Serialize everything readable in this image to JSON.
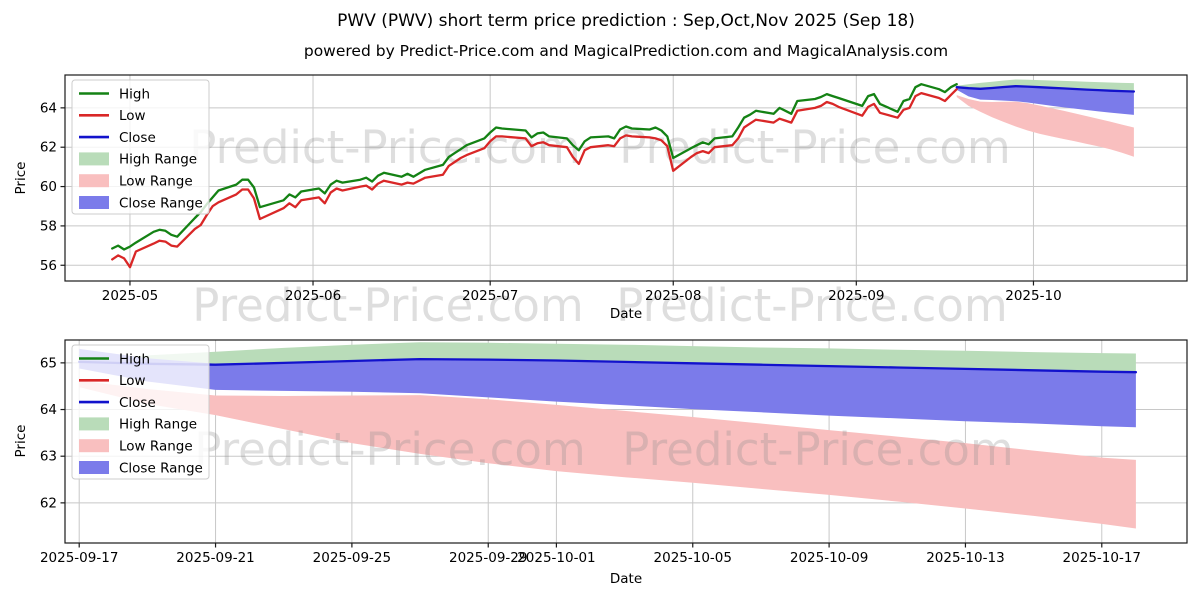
{
  "header": {
    "title": "PWV (PWV) short term price prediction : Sep,Oct,Nov 2025 (Sep 18)",
    "subtitle": "powered by Predict-Price.com and MagicalPrediction.com and MagicalAnalysis.com"
  },
  "watermark": {
    "text": "Predict-Price.com",
    "color": "#8a8a8a",
    "opacity": 0.28
  },
  "colors": {
    "high_line": "#148214",
    "low_line": "#d92727",
    "close_line": "#1212cc",
    "high_range": "#b9dcb9",
    "low_range": "#f9bfbf",
    "close_range": "#7b7bea",
    "grid": "#c8c8c8",
    "spine": "#1a1a1a",
    "tick_text": "#000000",
    "legend_border": "#cccccc"
  },
  "chart_data": [
    {
      "name": "price-history-with-forecast",
      "type": "line",
      "xlabel": "Date",
      "ylabel": "Price",
      "x_range": [
        "2025-04-20",
        "2025-10-27"
      ],
      "y_range": [
        55.2,
        65.67
      ],
      "x_ticks": [
        {
          "v": "2025-05-01",
          "label": "2025-05"
        },
        {
          "v": "2025-06-01",
          "label": "2025-06"
        },
        {
          "v": "2025-07-01",
          "label": "2025-07"
        },
        {
          "v": "2025-08-01",
          "label": "2025-08"
        },
        {
          "v": "2025-09-01",
          "label": "2025-09"
        },
        {
          "v": "2025-10-01",
          "label": "2025-10"
        }
      ],
      "y_ticks": [
        56,
        58,
        60,
        62,
        64
      ],
      "legend": [
        {
          "label": "High",
          "type": "line",
          "color": "#148214"
        },
        {
          "label": "Low",
          "type": "line",
          "color": "#d92727"
        },
        {
          "label": "Close",
          "type": "line",
          "color": "#1212cc"
        },
        {
          "label": "High Range",
          "type": "patch",
          "color": "#b9dcb9"
        },
        {
          "label": "Low Range",
          "type": "patch",
          "color": "#f9bfbf"
        },
        {
          "label": "Close Range",
          "type": "patch",
          "color": "#7b7bea"
        }
      ],
      "series": {
        "history": [
          [
            "2025-04-28",
            56.85,
            56.3
          ],
          [
            "2025-04-29",
            57.0,
            56.5
          ],
          [
            "2025-04-30",
            56.8,
            56.35
          ],
          [
            "2025-05-01",
            56.95,
            55.9
          ],
          [
            "2025-05-02",
            57.15,
            56.7
          ],
          [
            "2025-05-05",
            57.7,
            57.1
          ],
          [
            "2025-05-06",
            57.8,
            57.25
          ],
          [
            "2025-05-07",
            57.75,
            57.2
          ],
          [
            "2025-05-08",
            57.55,
            57.0
          ],
          [
            "2025-05-09",
            57.45,
            56.95
          ],
          [
            "2025-05-12",
            58.4,
            57.85
          ],
          [
            "2025-05-13",
            58.7,
            58.05
          ],
          [
            "2025-05-14",
            59.1,
            58.55
          ],
          [
            "2025-05-15",
            59.45,
            59.0
          ],
          [
            "2025-05-16",
            59.8,
            59.2
          ],
          [
            "2025-05-19",
            60.1,
            59.6
          ],
          [
            "2025-05-20",
            60.35,
            59.85
          ],
          [
            "2025-05-21",
            60.35,
            59.85
          ],
          [
            "2025-05-22",
            59.95,
            59.4
          ],
          [
            "2025-05-23",
            58.95,
            58.35
          ],
          [
            "2025-05-27",
            59.3,
            58.9
          ],
          [
            "2025-05-28",
            59.6,
            59.15
          ],
          [
            "2025-05-29",
            59.45,
            58.95
          ],
          [
            "2025-05-30",
            59.75,
            59.3
          ],
          [
            "2025-06-02",
            59.9,
            59.45
          ],
          [
            "2025-06-03",
            59.65,
            59.15
          ],
          [
            "2025-06-04",
            60.1,
            59.7
          ],
          [
            "2025-06-05",
            60.3,
            59.9
          ],
          [
            "2025-06-06",
            60.2,
            59.8
          ],
          [
            "2025-06-09",
            60.35,
            60.0
          ],
          [
            "2025-06-10",
            60.45,
            60.05
          ],
          [
            "2025-06-11",
            60.25,
            59.85
          ],
          [
            "2025-06-12",
            60.55,
            60.15
          ],
          [
            "2025-06-13",
            60.7,
            60.3
          ],
          [
            "2025-06-16",
            60.5,
            60.1
          ],
          [
            "2025-06-17",
            60.65,
            60.2
          ],
          [
            "2025-06-18",
            60.5,
            60.15
          ],
          [
            "2025-06-20",
            60.85,
            60.45
          ],
          [
            "2025-06-23",
            61.1,
            60.6
          ],
          [
            "2025-06-24",
            61.5,
            61.05
          ],
          [
            "2025-06-25",
            61.7,
            61.25
          ],
          [
            "2025-06-26",
            61.9,
            61.45
          ],
          [
            "2025-06-27",
            62.1,
            61.6
          ],
          [
            "2025-06-30",
            62.45,
            61.95
          ],
          [
            "2025-07-01",
            62.75,
            62.3
          ],
          [
            "2025-07-02",
            63.0,
            62.55
          ],
          [
            "2025-07-03",
            62.95,
            62.55
          ],
          [
            "2025-07-07",
            62.85,
            62.45
          ],
          [
            "2025-07-08",
            62.5,
            62.05
          ],
          [
            "2025-07-09",
            62.7,
            62.2
          ],
          [
            "2025-07-10",
            62.75,
            62.25
          ],
          [
            "2025-07-11",
            62.55,
            62.1
          ],
          [
            "2025-07-14",
            62.45,
            62.0
          ],
          [
            "2025-07-15",
            62.1,
            61.5
          ],
          [
            "2025-07-16",
            61.85,
            61.15
          ],
          [
            "2025-07-17",
            62.3,
            61.85
          ],
          [
            "2025-07-18",
            62.5,
            62.0
          ],
          [
            "2025-07-21",
            62.55,
            62.1
          ],
          [
            "2025-07-22",
            62.45,
            62.05
          ],
          [
            "2025-07-23",
            62.9,
            62.45
          ],
          [
            "2025-07-24",
            63.05,
            62.6
          ],
          [
            "2025-07-25",
            62.95,
            62.55
          ],
          [
            "2025-07-28",
            62.9,
            62.5
          ],
          [
            "2025-07-29",
            63.0,
            62.45
          ],
          [
            "2025-07-30",
            62.85,
            62.35
          ],
          [
            "2025-07-31",
            62.55,
            62.05
          ],
          [
            "2025-08-01",
            61.45,
            60.8
          ],
          [
            "2025-08-04",
            61.95,
            61.5
          ],
          [
            "2025-08-05",
            62.1,
            61.7
          ],
          [
            "2025-08-06",
            62.25,
            61.8
          ],
          [
            "2025-08-07",
            62.15,
            61.7
          ],
          [
            "2025-08-08",
            62.45,
            62.0
          ],
          [
            "2025-08-11",
            62.55,
            62.1
          ],
          [
            "2025-08-12",
            63.0,
            62.45
          ],
          [
            "2025-08-13",
            63.5,
            63.0
          ],
          [
            "2025-08-14",
            63.65,
            63.2
          ],
          [
            "2025-08-15",
            63.85,
            63.4
          ],
          [
            "2025-08-18",
            63.7,
            63.25
          ],
          [
            "2025-08-19",
            64.0,
            63.45
          ],
          [
            "2025-08-20",
            63.85,
            63.35
          ],
          [
            "2025-08-21",
            63.7,
            63.25
          ],
          [
            "2025-08-22",
            64.35,
            63.85
          ],
          [
            "2025-08-25",
            64.45,
            64.0
          ],
          [
            "2025-08-26",
            64.55,
            64.1
          ],
          [
            "2025-08-27",
            64.7,
            64.3
          ],
          [
            "2025-08-28",
            64.6,
            64.2
          ],
          [
            "2025-08-29",
            64.5,
            64.05
          ],
          [
            "2025-09-02",
            64.1,
            63.6
          ],
          [
            "2025-09-03",
            64.6,
            64.05
          ],
          [
            "2025-09-04",
            64.7,
            64.2
          ],
          [
            "2025-09-05",
            64.2,
            63.75
          ],
          [
            "2025-09-08",
            63.8,
            63.5
          ],
          [
            "2025-09-09",
            64.35,
            63.9
          ],
          [
            "2025-09-10",
            64.45,
            64.0
          ],
          [
            "2025-09-11",
            65.05,
            64.6
          ],
          [
            "2025-09-12",
            65.2,
            64.75
          ],
          [
            "2025-09-15",
            64.95,
            64.5
          ],
          [
            "2025-09-16",
            64.8,
            64.35
          ],
          [
            "2025-09-17",
            65.05,
            64.65
          ],
          [
            "2025-09-18",
            65.2,
            64.95
          ]
        ],
        "forecast": {
          "dates": [
            "2025-09-18",
            "2025-09-20",
            "2025-09-22",
            "2025-09-24",
            "2025-09-26",
            "2025-09-28",
            "2025-09-30",
            "2025-10-02",
            "2025-10-04",
            "2025-10-06",
            "2025-10-08",
            "2025-10-10",
            "2025-10-12",
            "2025-10-14",
            "2025-10-16",
            "2025-10-18"
          ],
          "close": [
            65.05,
            65.0,
            64.97,
            65.01,
            65.06,
            65.1,
            65.08,
            65.05,
            65.02,
            64.99,
            64.96,
            64.93,
            64.9,
            64.87,
            64.85,
            64.83
          ],
          "high_range_top": [
            65.12,
            65.2,
            65.27,
            65.33,
            65.39,
            65.44,
            65.43,
            65.41,
            65.39,
            65.37,
            65.35,
            65.33,
            65.31,
            65.29,
            65.27,
            65.26
          ],
          "close_range_top": [
            65.05,
            65.0,
            64.97,
            65.01,
            65.06,
            65.1,
            65.08,
            65.05,
            65.02,
            64.99,
            64.96,
            64.93,
            64.9,
            64.87,
            64.85,
            64.83
          ],
          "close_range_bottom": [
            64.92,
            64.58,
            64.42,
            64.4,
            64.37,
            64.34,
            64.27,
            64.19,
            64.11,
            64.03,
            63.96,
            63.89,
            63.82,
            63.76,
            63.7,
            63.64
          ],
          "low_range_top": [
            64.65,
            64.45,
            64.32,
            64.3,
            64.31,
            64.32,
            64.24,
            64.12,
            63.99,
            63.86,
            63.72,
            63.58,
            63.44,
            63.3,
            63.15,
            63.0
          ],
          "low_range_bottom": [
            64.55,
            64.1,
            63.8,
            63.52,
            63.28,
            63.05,
            62.85,
            62.68,
            62.55,
            62.42,
            62.3,
            62.17,
            62.04,
            61.9,
            61.72,
            61.52
          ]
        }
      }
    },
    {
      "name": "forecast-detail",
      "type": "line",
      "xlabel": "Date",
      "ylabel": "Price",
      "x_range": [
        "2025-09-16T14:00",
        "2025-10-19T12:00"
      ],
      "y_range": [
        61.14,
        65.49
      ],
      "x_ticks": [
        {
          "v": "2025-09-17",
          "label": "2025-09-17"
        },
        {
          "v": "2025-09-21",
          "label": "2025-09-21"
        },
        {
          "v": "2025-09-25",
          "label": "2025-09-25"
        },
        {
          "v": "2025-09-29",
          "label": "2025-09-29"
        },
        {
          "v": "2025-10-01",
          "label": "2025-10-01"
        },
        {
          "v": "2025-10-05",
          "label": "2025-10-05"
        },
        {
          "v": "2025-10-09",
          "label": "2025-10-09"
        },
        {
          "v": "2025-10-13",
          "label": "2025-10-13"
        },
        {
          "v": "2025-10-17",
          "label": "2025-10-17"
        }
      ],
      "y_ticks": [
        62,
        63,
        64,
        65
      ],
      "legend": [
        {
          "label": "High",
          "type": "line",
          "color": "#148214"
        },
        {
          "label": "Low",
          "type": "line",
          "color": "#d92727"
        },
        {
          "label": "Close",
          "type": "line",
          "color": "#1212cc"
        },
        {
          "label": "High Range",
          "type": "patch",
          "color": "#b9dcb9"
        },
        {
          "label": "Low Range",
          "type": "patch",
          "color": "#f9bfbf"
        },
        {
          "label": "Close Range",
          "type": "patch",
          "color": "#7b7bea"
        }
      ],
      "series": {
        "history": [],
        "forecast": {
          "dates": [
            "2025-09-17",
            "2025-09-19",
            "2025-09-21",
            "2025-09-23",
            "2025-09-25",
            "2025-09-27",
            "2025-09-29",
            "2025-10-01",
            "2025-10-03",
            "2025-10-05",
            "2025-10-07",
            "2025-10-09",
            "2025-10-11",
            "2025-10-13",
            "2025-10-15",
            "2025-10-17",
            "2025-10-18"
          ],
          "close": [
            65.02,
            64.98,
            64.96,
            65.0,
            65.04,
            65.08,
            65.07,
            65.05,
            65.02,
            64.99,
            64.96,
            64.93,
            64.9,
            64.87,
            64.84,
            64.81,
            64.8
          ],
          "high_range_top": [
            65.08,
            65.16,
            65.24,
            65.32,
            65.39,
            65.44,
            65.43,
            65.41,
            65.39,
            65.36,
            65.33,
            65.31,
            65.28,
            65.26,
            65.23,
            65.21,
            65.2
          ],
          "close_range_top": [
            65.3,
            65.1,
            64.98,
            65.01,
            65.05,
            65.09,
            65.08,
            65.06,
            65.03,
            65.0,
            64.97,
            64.94,
            64.91,
            64.88,
            64.85,
            64.82,
            64.81
          ],
          "close_range_bottom": [
            64.88,
            64.6,
            64.42,
            64.4,
            64.38,
            64.35,
            64.26,
            64.17,
            64.09,
            64.01,
            63.94,
            63.87,
            63.81,
            63.75,
            63.7,
            63.64,
            63.62
          ],
          "low_range_top": [
            64.62,
            64.44,
            64.3,
            64.29,
            64.3,
            64.31,
            64.22,
            64.1,
            63.97,
            63.84,
            63.7,
            63.56,
            63.42,
            63.28,
            63.12,
            62.97,
            62.92
          ],
          "low_range_bottom": [
            64.48,
            64.12,
            63.88,
            63.58,
            63.28,
            63.05,
            62.85,
            62.68,
            62.55,
            62.43,
            62.3,
            62.17,
            62.03,
            61.88,
            61.72,
            61.55,
            61.45
          ]
        }
      }
    }
  ]
}
